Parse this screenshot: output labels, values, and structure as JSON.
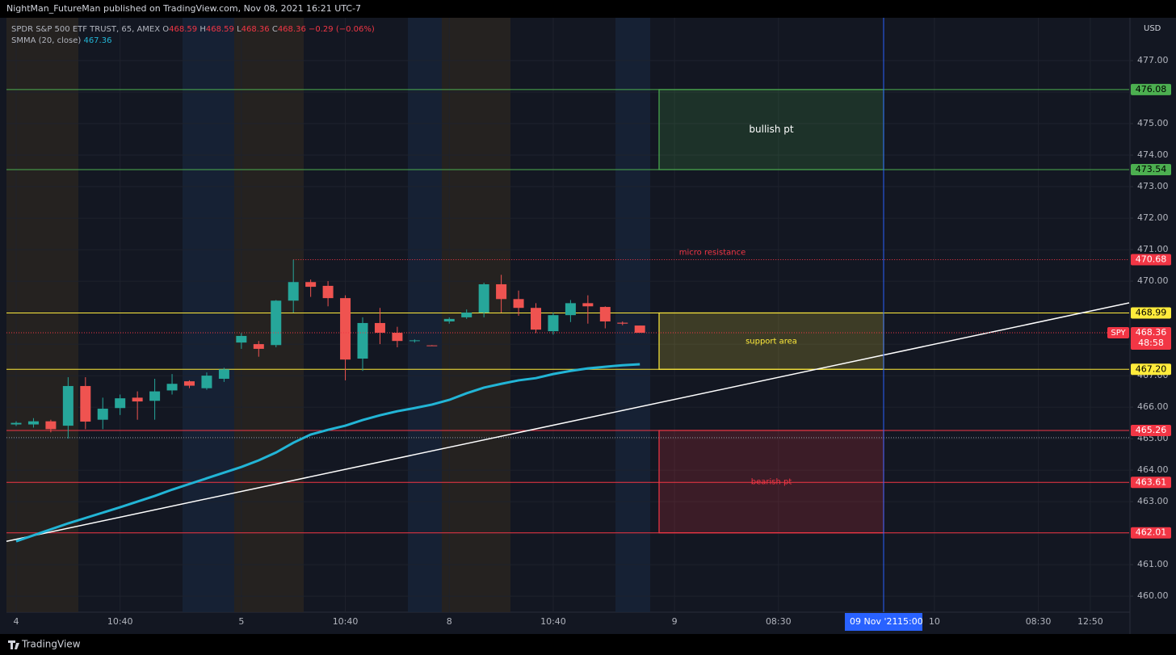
{
  "header": {
    "published": "NightMan_FutureMan published on TradingView.com, Nov 08, 2021 16:21 UTC-7"
  },
  "legend": {
    "symbol": "SPDR S&P 500 ETF TRUST, 65, AMEX",
    "ohlc": [
      {
        "key": "O",
        "value": 468.59
      },
      {
        "key": "H",
        "value": 468.59
      },
      {
        "key": "L",
        "value": 468.36
      },
      {
        "key": "C",
        "value": 468.36
      }
    ],
    "change": {
      "value": -0.29,
      "label": "−0.29"
    },
    "change_pct": {
      "value": -0.06,
      "label": "(−0.06%)"
    },
    "indicator": "SMMA (20, close)",
    "indicator_value": 467.36
  },
  "chart_data": {
    "type": "candlestick",
    "categories": [
      "4",
      null,
      null,
      null,
      null,
      null,
      "10:40",
      null,
      null,
      null,
      null,
      null,
      null,
      "5",
      null,
      null,
      null,
      null,
      null,
      "10:40",
      null,
      null,
      null,
      null,
      null,
      "8",
      null,
      null,
      null,
      null,
      null,
      "10:40",
      null,
      null,
      null,
      null,
      null,
      null,
      "9",
      null,
      null,
      null,
      null,
      null,
      "08:30",
      null,
      null,
      null,
      null,
      null,
      null,
      null,
      null,
      "10",
      null,
      null,
      null,
      null,
      null,
      "08:30",
      null,
      null,
      "12:50"
    ],
    "open": [
      465.45,
      465.45,
      465.55,
      465.41,
      466.67,
      465.6,
      465.97,
      466.3,
      466.2,
      466.53,
      466.82,
      466.6,
      466.9,
      468.05,
      468.0,
      467.97,
      469.38,
      469.97,
      469.85,
      469.46,
      467.54,
      468.67,
      468.36,
      468.1,
      467.96,
      468.72,
      468.85,
      469.0,
      469.9,
      469.43,
      469.15,
      468.41,
      468.92,
      469.3,
      469.18,
      468.68,
      468.59,
      null,
      null,
      null,
      null,
      null,
      null,
      null,
      null,
      null,
      null,
      null,
      null,
      null,
      null,
      null,
      null,
      null,
      null,
      null,
      null,
      null,
      null,
      null,
      null,
      null,
      null
    ],
    "high": [
      465.55,
      465.65,
      465.6,
      466.95,
      466.95,
      466.3,
      466.4,
      466.5,
      466.9,
      467.05,
      466.85,
      467.1,
      467.25,
      468.35,
      468.1,
      469.4,
      470.68,
      470.05,
      470.0,
      469.55,
      468.85,
      469.15,
      468.55,
      468.15,
      467.97,
      468.85,
      469.1,
      469.95,
      470.2,
      469.7,
      469.3,
      469.0,
      469.4,
      469.55,
      469.2,
      468.72,
      468.59,
      null,
      null,
      null,
      null,
      null,
      null,
      null,
      null,
      null,
      null,
      null,
      null,
      null,
      null,
      null,
      null,
      null,
      null,
      null,
      null,
      null,
      null,
      null,
      null,
      null,
      null
    ],
    "low": [
      465.4,
      465.35,
      465.2,
      465.0,
      465.3,
      465.3,
      465.75,
      465.6,
      465.6,
      466.4,
      466.6,
      466.55,
      466.8,
      467.85,
      467.6,
      467.9,
      469.0,
      469.5,
      469.2,
      466.85,
      467.15,
      468.0,
      467.9,
      468.05,
      467.94,
      468.65,
      468.8,
      468.85,
      469.0,
      468.9,
      468.35,
      468.3,
      468.7,
      468.65,
      468.5,
      468.6,
      468.36,
      null,
      null,
      null,
      null,
      null,
      null,
      null,
      null,
      null,
      null,
      null,
      null,
      null,
      null,
      null,
      null,
      null,
      null,
      null,
      null,
      null,
      null,
      null,
      null,
      null,
      null
    ],
    "close": [
      465.5,
      465.55,
      465.3,
      466.67,
      465.54,
      465.95,
      466.28,
      466.18,
      466.5,
      466.74,
      466.68,
      467.0,
      467.2,
      468.26,
      467.85,
      469.38,
      469.97,
      469.82,
      469.46,
      467.51,
      468.67,
      468.36,
      468.1,
      468.12,
      467.95,
      468.8,
      469.0,
      469.9,
      469.43,
      469.15,
      468.46,
      468.92,
      469.3,
      469.2,
      468.72,
      468.65,
      468.36,
      null,
      null,
      null,
      null,
      null,
      null,
      null,
      null,
      null,
      null,
      null,
      null,
      null,
      null,
      null,
      null,
      null,
      null,
      null,
      null,
      null,
      null,
      null,
      null,
      null,
      null
    ],
    "up_color": "#26a69a",
    "down_color": "#ef5350",
    "overlay": {
      "color": "#22b5d6",
      "values": [
        461.74,
        461.93,
        462.12,
        462.31,
        462.48,
        462.65,
        462.82,
        463.0,
        463.18,
        463.38,
        463.56,
        463.74,
        463.92,
        464.1,
        464.31,
        464.56,
        464.87,
        465.13,
        465.28,
        465.41,
        465.59,
        465.74,
        465.87,
        465.97,
        466.08,
        466.23,
        466.44,
        466.62,
        466.74,
        466.85,
        466.92,
        467.05,
        467.15,
        467.23,
        467.28,
        467.33,
        467.36,
        null,
        null,
        null,
        null,
        null,
        null,
        null,
        null,
        null,
        null,
        null,
        null,
        null,
        null,
        null,
        null,
        null,
        null,
        null,
        null,
        null,
        null,
        null,
        null,
        null,
        null
      ]
    },
    "trendline": {
      "color": "#ffffff",
      "start": 461.74,
      "end": 469.31
    },
    "levels": [
      {
        "value": 476.08,
        "label": "476.08",
        "color": "#4caf50"
      },
      {
        "value": 473.54,
        "label": "473.54",
        "color": "#4caf50"
      },
      {
        "value": 470.68,
        "label": "470.68",
        "color": "#f23645",
        "name": "micro resistance",
        "dotted": true
      },
      {
        "value": 468.99,
        "label": "468.99",
        "color": "#ffeb3b"
      },
      {
        "value": 467.2,
        "label": "467.20",
        "color": "#ffeb3b"
      },
      {
        "value": 465.26,
        "label": "465.26",
        "color": "#f23645"
      },
      {
        "value": 463.61,
        "label": "463.61",
        "color": "#f23645"
      },
      {
        "value": 462.01,
        "label": "462.01",
        "color": "#f23645"
      }
    ],
    "zones": [
      {
        "label": "bullish pt",
        "top": 476.08,
        "bottom": 473.54,
        "color": "#4caf50",
        "text_color": "#ffffff"
      },
      {
        "label": "support area",
        "top": 468.99,
        "bottom": 467.2,
        "color": "#ffeb3b",
        "text_color": "#ffeb3b"
      },
      {
        "label": "bearish pt",
        "top": 465.26,
        "bottom": 462.01,
        "color": "#f23645",
        "text_color": "#f23645"
      }
    ],
    "prev_close": 465.03,
    "last_price": {
      "symbol": "SPY",
      "value": 468.36,
      "label": "468.36",
      "countdown": "48:58",
      "color": "#f23645"
    },
    "crosshair": {
      "date": "09 Nov '21",
      "time": "15:00"
    },
    "currency": "USD",
    "ylim": [
      459.49,
      478.36
    ],
    "yticks": [
      {
        "value": 460,
        "label": "460.00"
      },
      {
        "value": 461,
        "label": "461.00"
      },
      {
        "value": 462,
        "label": "462.00"
      },
      {
        "value": 463,
        "label": "463.00"
      },
      {
        "value": 464,
        "label": "464.00"
      },
      {
        "value": 465,
        "label": "465.00"
      },
      {
        "value": 466,
        "label": "466.00"
      },
      {
        "value": 467,
        "label": "467.00"
      },
      {
        "value": 468,
        "label": "468.00"
      },
      {
        "value": 469,
        "label": "469.00"
      },
      {
        "value": 470,
        "label": "470.00"
      },
      {
        "value": 471,
        "label": "471.00"
      },
      {
        "value": 472,
        "label": "472.00"
      },
      {
        "value": 473,
        "label": "473.00"
      },
      {
        "value": 474,
        "label": "474.00"
      },
      {
        "value": 475,
        "label": "475.00"
      },
      {
        "value": 476,
        "label": "476.00"
      },
      {
        "value": 477,
        "label": "477.00"
      }
    ],
    "grid": true
  },
  "footer": {
    "brand": "TradingView"
  }
}
